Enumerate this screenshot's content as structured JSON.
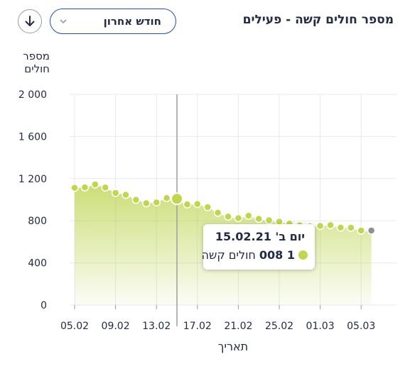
{
  "header": {
    "title": "מספר חולים קשה - פעילים",
    "period_selected": "חודש אחרון",
    "chevron_icon": "chevron-down-icon",
    "download_icon": "arrow-down-icon"
  },
  "colors": {
    "accent": "#1f4ec9",
    "series": "#b5cf3c",
    "series_dark": "#c1d64d",
    "last_point": "#8f8f8f",
    "grid": "#e4e9f2",
    "crosshair": "#9e9e9e"
  },
  "tooltip": {
    "date": "יום ב' 15.02.21",
    "value": "1 008",
    "series_label": "חולים קשה"
  },
  "chart_data": {
    "type": "area",
    "title": "מספר חולים קשה - פעילים",
    "ylabel": "מספר חולים",
    "xlabel": "תאריך",
    "ylim": [
      0,
      2000
    ],
    "yticks": [
      0,
      400,
      800,
      1200,
      1600,
      2000
    ],
    "ytick_labels": [
      "0",
      "400",
      "800",
      "1 200",
      "1 600",
      "2 000"
    ],
    "xtick_labels": [
      "05.02",
      "09.02",
      "13.02",
      "17.02",
      "21.02",
      "25.02",
      "01.03",
      "05.03"
    ],
    "grid": true,
    "x": [
      "05.02",
      "06.02",
      "07.02",
      "08.02",
      "09.02",
      "10.02",
      "11.02",
      "12.02",
      "13.02",
      "14.02",
      "15.02",
      "16.02",
      "17.02",
      "18.02",
      "19.02",
      "20.02",
      "21.02",
      "22.02",
      "23.02",
      "24.02",
      "25.02",
      "26.02",
      "27.02",
      "28.02",
      "01.03",
      "02.03",
      "03.03",
      "04.03",
      "05.03",
      "06.03"
    ],
    "series": [
      {
        "values": [
          1113,
          1117,
          1145,
          1115,
          1064,
          1046,
          999,
          966,
          974,
          1016,
          1008,
          955,
          959,
          929,
          876,
          839,
          825,
          848,
          818,
          805,
          791,
          773,
          757,
          747,
          751,
          758,
          735,
          734,
          707,
          707
        ]
      }
    ],
    "highlight_index": 10
  }
}
